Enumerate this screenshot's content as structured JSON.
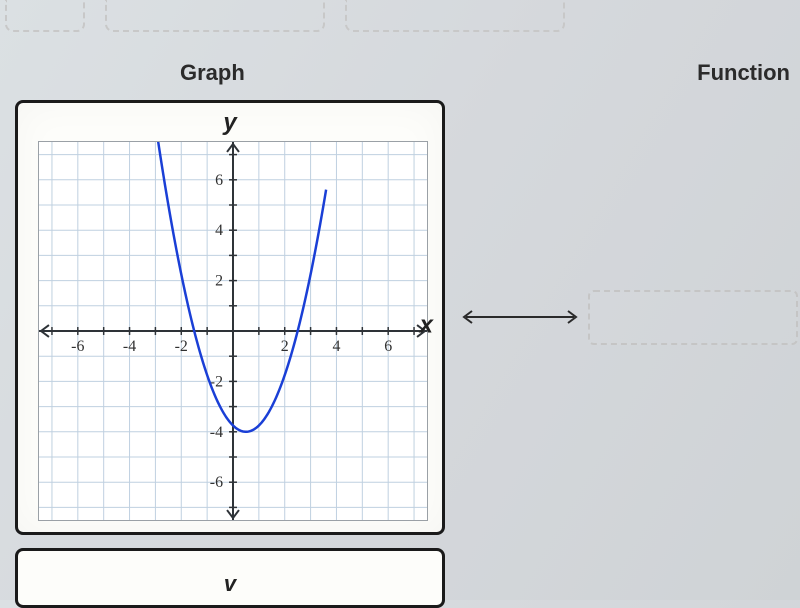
{
  "headers": {
    "graph": "Graph",
    "function": "Function"
  },
  "axis_labels": {
    "x": "x",
    "y": "y"
  },
  "chart": {
    "type": "line",
    "xlim": [
      -7.5,
      7.5
    ],
    "ylim": [
      -7.5,
      7.5
    ],
    "xtick_step": 1,
    "ytick_step": 1,
    "xtick_labels": [
      -6,
      -4,
      -2,
      2,
      4,
      6
    ],
    "ytick_labels": [
      -6,
      -4,
      -2,
      2,
      4,
      6
    ],
    "grid_color": "#bfd0e0",
    "axis_color": "#2e3338",
    "background_color": "#ffffff",
    "curve": {
      "color": "#1a3fd6",
      "width": 2.5,
      "type": "parabola",
      "vertex": [
        0.5,
        -4
      ],
      "a": 1,
      "x_samples": [
        -3,
        -2.5,
        -2,
        -1.5,
        -1,
        -0.5,
        0,
        0.5,
        1,
        1.5,
        2,
        2.5,
        3,
        3.4
      ],
      "y_from_x": "a*(x-h)^2+k"
    },
    "tick_fontsize": 16,
    "tick_color": "#303030"
  },
  "next_axis_label": "v"
}
